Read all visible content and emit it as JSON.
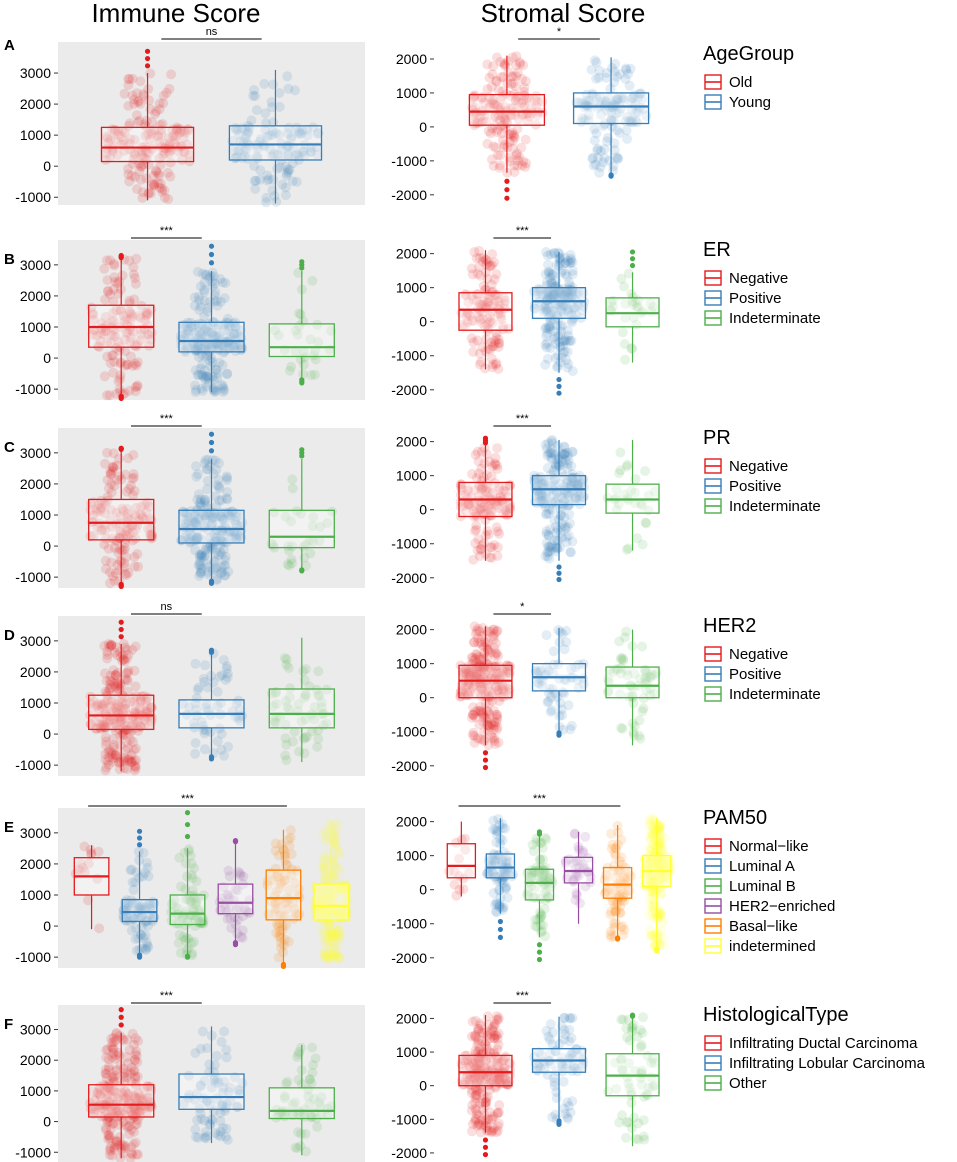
{
  "column_titles": [
    "Immune Score",
    "Stromal Score"
  ],
  "chart_data": [
    {
      "type": "box",
      "panel": "A",
      "legend_title": "AgeGroup",
      "groups": [
        "Old",
        "Young"
      ],
      "colors": [
        "#E41A1C",
        "#377EB8"
      ],
      "immune": {
        "yticks": [
          -1000,
          0,
          1000,
          2000,
          3000
        ],
        "ylim": [
          -1250,
          4000
        ],
        "sig": {
          "label": "ns",
          "from": 0,
          "to": 1
        },
        "boxes": [
          {
            "min": -1100,
            "q1": 150,
            "median": 600,
            "q3": 1250,
            "max": 3000,
            "pmin": -1100,
            "pmax": 3700,
            "n": 180
          },
          {
            "min": -1200,
            "q1": 200,
            "median": 700,
            "q3": 1300,
            "max": 3100,
            "pmin": -1200,
            "pmax": 3100,
            "n": 130
          }
        ]
      },
      "stromal": {
        "yticks": [
          -2000,
          -1000,
          0,
          1000,
          2000
        ],
        "ylim": [
          -2300,
          2500
        ],
        "sig": {
          "label": "*",
          "from": 0,
          "to": 1
        },
        "boxes": [
          {
            "min": -1350,
            "q1": 50,
            "median": 450,
            "q3": 950,
            "max": 2100,
            "pmin": -2100,
            "pmax": 2100,
            "n": 180
          },
          {
            "min": -1400,
            "q1": 100,
            "median": 600,
            "q3": 1000,
            "max": 2050,
            "pmin": -1450,
            "pmax": 2050,
            "n": 130
          }
        ]
      }
    },
    {
      "type": "box",
      "panel": "B",
      "legend_title": "ER",
      "groups": [
        "Negative",
        "Positive",
        "Indeterminate"
      ],
      "colors": [
        "#E41A1C",
        "#377EB8",
        "#4DAF4A"
      ],
      "immune": {
        "yticks": [
          -1000,
          0,
          1000,
          2000,
          3000
        ],
        "ylim": [
          -1350,
          3800
        ],
        "sig": {
          "label": "***",
          "from": 0,
          "to": 1
        },
        "boxes": [
          {
            "min": -1200,
            "q1": 350,
            "median": 1000,
            "q3": 1700,
            "max": 3200,
            "pmin": -1300,
            "pmax": 3300,
            "n": 140
          },
          {
            "min": -1100,
            "q1": 200,
            "median": 550,
            "q3": 1150,
            "max": 2800,
            "pmin": -1100,
            "pmax": 3600,
            "n": 220
          },
          {
            "min": -650,
            "q1": 50,
            "median": 350,
            "q3": 1100,
            "max": 2800,
            "pmin": -800,
            "pmax": 3100,
            "n": 30
          }
        ]
      },
      "stromal": {
        "yticks": [
          -2000,
          -1000,
          0,
          1000,
          2000
        ],
        "ylim": [
          -2300,
          2400
        ],
        "sig": {
          "label": "***",
          "from": 0,
          "to": 1
        },
        "boxes": [
          {
            "min": -1400,
            "q1": -250,
            "median": 350,
            "q3": 850,
            "max": 2100,
            "pmin": -1400,
            "pmax": 2100,
            "n": 130
          },
          {
            "min": -1500,
            "q1": 100,
            "median": 600,
            "q3": 1000,
            "max": 2050,
            "pmin": -2100,
            "pmax": 2050,
            "n": 220
          },
          {
            "min": -1200,
            "q1": -150,
            "median": 250,
            "q3": 700,
            "max": 1450,
            "pmin": -1200,
            "pmax": 2050,
            "n": 30
          }
        ]
      }
    },
    {
      "type": "box",
      "panel": "C",
      "legend_title": "PR",
      "groups": [
        "Negative",
        "Positive",
        "Indeterminate"
      ],
      "colors": [
        "#E41A1C",
        "#377EB8",
        "#4DAF4A"
      ],
      "immune": {
        "yticks": [
          -1000,
          0,
          1000,
          2000,
          3000
        ],
        "ylim": [
          -1350,
          3800
        ],
        "sig": {
          "label": "***",
          "from": 0,
          "to": 1
        },
        "boxes": [
          {
            "min": -1200,
            "q1": 200,
            "median": 750,
            "q3": 1500,
            "max": 3100,
            "pmin": -1300,
            "pmax": 3150,
            "n": 150
          },
          {
            "min": -1100,
            "q1": 100,
            "median": 550,
            "q3": 1150,
            "max": 2800,
            "pmin": -1200,
            "pmax": 3600,
            "n": 220
          },
          {
            "min": -750,
            "q1": -50,
            "median": 300,
            "q3": 1150,
            "max": 2800,
            "pmin": -800,
            "pmax": 3100,
            "n": 30
          }
        ]
      },
      "stromal": {
        "yticks": [
          -2000,
          -1000,
          0,
          1000,
          2000
        ],
        "ylim": [
          -2300,
          2400
        ],
        "sig": {
          "label": "***",
          "from": 0,
          "to": 1
        },
        "boxes": [
          {
            "min": -1500,
            "q1": -200,
            "median": 300,
            "q3": 800,
            "max": 1900,
            "pmin": -1500,
            "pmax": 2100,
            "n": 150
          },
          {
            "min": -1500,
            "q1": 150,
            "median": 600,
            "q3": 1000,
            "max": 2050,
            "pmin": -2050,
            "pmax": 2050,
            "n": 220
          },
          {
            "min": -1200,
            "q1": -100,
            "median": 300,
            "q3": 750,
            "max": 2050,
            "pmin": -1200,
            "pmax": 2050,
            "n": 30
          }
        ]
      }
    },
    {
      "type": "box",
      "panel": "D",
      "legend_title": "HER2",
      "groups": [
        "Negative",
        "Positive",
        "Indeterminate"
      ],
      "colors": [
        "#E41A1C",
        "#377EB8",
        "#4DAF4A"
      ],
      "immune": {
        "yticks": [
          -1000,
          0,
          1000,
          2000,
          3000
        ],
        "ylim": [
          -1350,
          3800
        ],
        "sig": {
          "label": "ns",
          "from": 0,
          "to": 1
        },
        "boxes": [
          {
            "min": -1200,
            "q1": 150,
            "median": 600,
            "q3": 1250,
            "max": 2900,
            "pmin": -1200,
            "pmax": 3600,
            "n": 260
          },
          {
            "min": -700,
            "q1": 200,
            "median": 650,
            "q3": 1100,
            "max": 2600,
            "pmin": -800,
            "pmax": 2700,
            "n": 60
          },
          {
            "min": -900,
            "q1": 200,
            "median": 650,
            "q3": 1450,
            "max": 3100,
            "pmin": -900,
            "pmax": 3100,
            "n": 60
          }
        ]
      },
      "stromal": {
        "yticks": [
          -2000,
          -1000,
          0,
          1000,
          2000
        ],
        "ylim": [
          -2300,
          2400
        ],
        "sig": {
          "label": "*",
          "from": 0,
          "to": 1
        },
        "boxes": [
          {
            "min": -1400,
            "q1": 0,
            "median": 500,
            "q3": 950,
            "max": 2100,
            "pmin": -2050,
            "pmax": 2100,
            "n": 260
          },
          {
            "min": -1000,
            "q1": 200,
            "median": 600,
            "q3": 1000,
            "max": 2050,
            "pmin": -1100,
            "pmax": 2050,
            "n": 60
          },
          {
            "min": -1400,
            "q1": 0,
            "median": 350,
            "q3": 900,
            "max": 2000,
            "pmin": -1400,
            "pmax": 2000,
            "n": 60
          }
        ]
      }
    },
    {
      "type": "box",
      "panel": "E",
      "legend_title": "PAM50",
      "groups": [
        "Normal−like",
        "Luminal A",
        "Luminal B",
        "HER2−enriched",
        "Basal−like",
        "indetermined"
      ],
      "colors": [
        "#E41A1C",
        "#377EB8",
        "#4DAF4A",
        "#984EA3",
        "#FF7F00",
        "#FFFF33"
      ],
      "immune": {
        "yticks": [
          -1000,
          0,
          1000,
          2000,
          3000
        ],
        "ylim": [
          -1350,
          3800
        ],
        "sig": {
          "label": "***",
          "from": 0,
          "to": 4
        },
        "boxes": [
          {
            "min": -100,
            "q1": 1000,
            "median": 1600,
            "q3": 2200,
            "max": 2600,
            "pmin": -100,
            "pmax": 2600,
            "n": 14
          },
          {
            "min": -900,
            "q1": 150,
            "median": 450,
            "q3": 850,
            "max": 2400,
            "pmin": -1000,
            "pmax": 3050,
            "n": 90
          },
          {
            "min": -950,
            "q1": 50,
            "median": 400,
            "q3": 1000,
            "max": 2500,
            "pmin": -1000,
            "pmax": 3650,
            "n": 80
          },
          {
            "min": -500,
            "q1": 400,
            "median": 750,
            "q3": 1350,
            "max": 2700,
            "pmin": -600,
            "pmax": 2750,
            "n": 40
          },
          {
            "min": -1200,
            "q1": 200,
            "median": 900,
            "q3": 1800,
            "max": 3100,
            "pmin": -1300,
            "pmax": 3100,
            "n": 80
          },
          {
            "min": -1100,
            "q1": 200,
            "median": 650,
            "q3": 1350,
            "max": 3350,
            "pmin": -1100,
            "pmax": 3350,
            "n": 220
          }
        ]
      },
      "stromal": {
        "yticks": [
          -2000,
          -1000,
          0,
          1000,
          2000
        ],
        "ylim": [
          -2300,
          2400
        ],
        "sig": {
          "label": "***",
          "from": 0,
          "to": 4
        },
        "boxes": [
          {
            "min": -200,
            "q1": 350,
            "median": 700,
            "q3": 1350,
            "max": 2000,
            "pmin": -200,
            "pmax": 2000,
            "n": 14
          },
          {
            "min": -700,
            "q1": 350,
            "median": 650,
            "q3": 1050,
            "max": 2100,
            "pmin": -1400,
            "pmax": 2100,
            "n": 90
          },
          {
            "min": -1400,
            "q1": -300,
            "median": 200,
            "q3": 600,
            "max": 1600,
            "pmin": -2050,
            "pmax": 1700,
            "n": 80
          },
          {
            "min": -1000,
            "q1": 200,
            "median": 550,
            "q3": 950,
            "max": 1700,
            "pmin": -1000,
            "pmax": 1700,
            "n": 40
          },
          {
            "min": -1400,
            "q1": -250,
            "median": 150,
            "q3": 650,
            "max": 1900,
            "pmin": -1450,
            "pmax": 1900,
            "n": 80
          },
          {
            "min": -1700,
            "q1": 100,
            "median": 550,
            "q3": 1000,
            "max": 2100,
            "pmin": -1800,
            "pmax": 2100,
            "n": 220
          }
        ]
      }
    },
    {
      "type": "box",
      "panel": "F",
      "legend_title": "HistologicalType",
      "groups": [
        "Infiltrating Ductal Carcinoma",
        "Infiltrating Lobular Carcinoma",
        "Other"
      ],
      "colors": [
        "#E41A1C",
        "#377EB8",
        "#4DAF4A"
      ],
      "immune": {
        "yticks": [
          -1000,
          0,
          1000,
          2000,
          3000
        ],
        "ylim": [
          -1350,
          3800
        ],
        "sig": {
          "label": "***",
          "from": 0,
          "to": 1
        },
        "boxes": [
          {
            "min": -1200,
            "q1": 150,
            "median": 550,
            "q3": 1200,
            "max": 2900,
            "pmin": -1200,
            "pmax": 3650,
            "n": 260
          },
          {
            "min": -700,
            "q1": 400,
            "median": 800,
            "q3": 1550,
            "max": 3100,
            "pmin": -700,
            "pmax": 3100,
            "n": 80
          },
          {
            "min": -1100,
            "q1": 100,
            "median": 350,
            "q3": 1100,
            "max": 2500,
            "pmin": -1100,
            "pmax": 2500,
            "n": 60
          }
        ]
      },
      "stromal": {
        "yticks": [
          -2000,
          -1000,
          0,
          1000,
          2000
        ],
        "ylim": [
          -2300,
          2400
        ],
        "sig": {
          "label": "***",
          "from": 0,
          "to": 1
        },
        "boxes": [
          {
            "min": -1400,
            "q1": 0,
            "median": 400,
            "q3": 900,
            "max": 2100,
            "pmin": -2050,
            "pmax": 2100,
            "n": 260
          },
          {
            "min": -1000,
            "q1": 400,
            "median": 750,
            "q3": 1100,
            "max": 2050,
            "pmin": -1150,
            "pmax": 2050,
            "n": 80
          },
          {
            "min": -1800,
            "q1": -300,
            "median": 300,
            "q3": 950,
            "max": 2050,
            "pmin": -1800,
            "pmax": 2100,
            "n": 60
          }
        ]
      }
    }
  ]
}
